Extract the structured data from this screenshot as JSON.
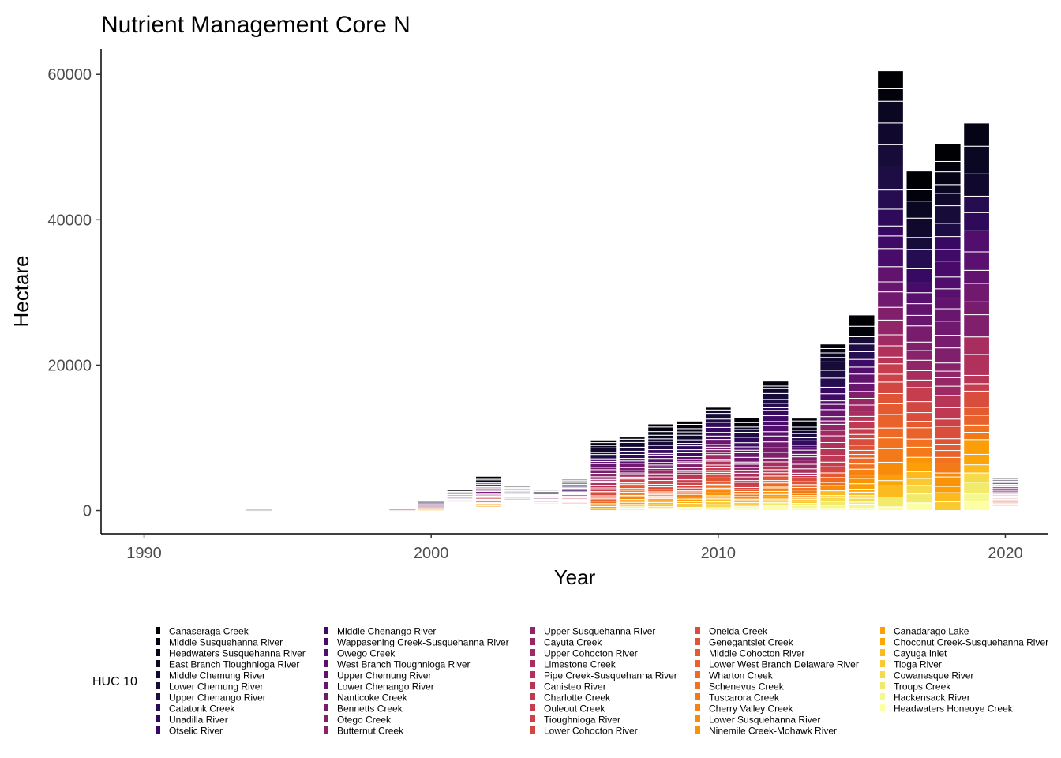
{
  "chart_data": {
    "type": "bar",
    "stacked": true,
    "title": "Nutrient Management Core N",
    "xlabel": "Year",
    "ylabel": "Hectare",
    "xlim": [
      1988.5,
      2021.5
    ],
    "ylim": [
      -3200,
      63500
    ],
    "xticks": [
      1990,
      2000,
      2010,
      2020
    ],
    "yticks": [
      0,
      20000,
      40000,
      60000
    ],
    "grid": false,
    "legend_title": "HUC 10",
    "legend_position": "bottom",
    "legend": [
      "Canaseraga Creek",
      "Middle Susquehanna River",
      "Headwaters Susquehanna River",
      "East Branch Tioughnioga River",
      "Middle Chemung River",
      "Lower Chemung River",
      "Upper Chenango River",
      "Catatonk Creek",
      "Unadilla River",
      "Otselic River",
      "Middle Chenango River",
      "Wappasening Creek-Susquehanna River",
      "Owego Creek",
      "West Branch Tioughnioga River",
      "Upper Chemung River",
      "Lower Chenango River",
      "Nanticoke Creek",
      "Bennetts Creek",
      "Otego Creek",
      "Butternut Creek",
      "Upper Susquehanna River",
      "Cayuta Creek",
      "Upper Cohocton River",
      "Limestone Creek",
      "Pipe Creek-Susquehanna River",
      "Canisteo River",
      "Charlotte Creek",
      "Ouleout Creek",
      "Tioughnioga River",
      "Lower Cohocton River",
      "Oneida Creek",
      "Genegantslet Creek",
      "Middle Cohocton River",
      "Lower West Branch Delaware River",
      "Wharton Creek",
      "Schenevus Creek",
      "Tuscarora Creek",
      "Cherry Valley Creek",
      "Lower Susquehanna River",
      "Ninemile Creek-Mohawk River",
      "Canadarago Lake",
      "Choconut Creek-Susquehanna River",
      "Cayuga Inlet",
      "Tioga River",
      "Cowanesque River",
      "Troups Creek",
      "Hackensack River",
      "Headwaters Honeoye Creek"
    ],
    "legend_colors": [
      "#000004",
      "#02020C",
      "#050416",
      "#0A0722",
      "#10092D",
      "#160B39",
      "#1E0C45",
      "#260C51",
      "#2F0A5B",
      "#380962",
      "#400A67",
      "#490B6A",
      "#510E6C",
      "#59106E",
      "#61136E",
      "#69166E",
      "#71196E",
      "#781C6D",
      "#801F6C",
      "#88226A",
      "#902568",
      "#982766",
      "#A02A63",
      "#A82E5F",
      "#B0315B",
      "#B73557",
      "#BF3952",
      "#C63D4D",
      "#CC4248",
      "#D34743",
      "#D94D3D",
      "#DF5337",
      "#E45A31",
      "#E9612B",
      "#ED6925",
      "#F1711F",
      "#F47918",
      "#F78212",
      "#F98B0B",
      "#FA9407",
      "#FB9E07",
      "#FCA50A",
      "#FBBA1F",
      "#F8C932",
      "#F5DB4C",
      "#F2EA69",
      "#F4F88E",
      "#FCFFA4"
    ],
    "years": [
      1994,
      1999,
      2000,
      2001,
      2002,
      2003,
      2004,
      2005,
      2006,
      2007,
      2008,
      2009,
      2010,
      2011,
      2012,
      2013,
      2014,
      2015,
      2016,
      2017,
      2018,
      2019,
      2020
    ],
    "totals": [
      100,
      150,
      1200,
      2800,
      4700,
      3300,
      2900,
      4300,
      9700,
      10100,
      11900,
      12300,
      14200,
      12800,
      17800,
      12700,
      22900,
      26900,
      60500,
      46700,
      50500,
      53300,
      4500
    ]
  }
}
